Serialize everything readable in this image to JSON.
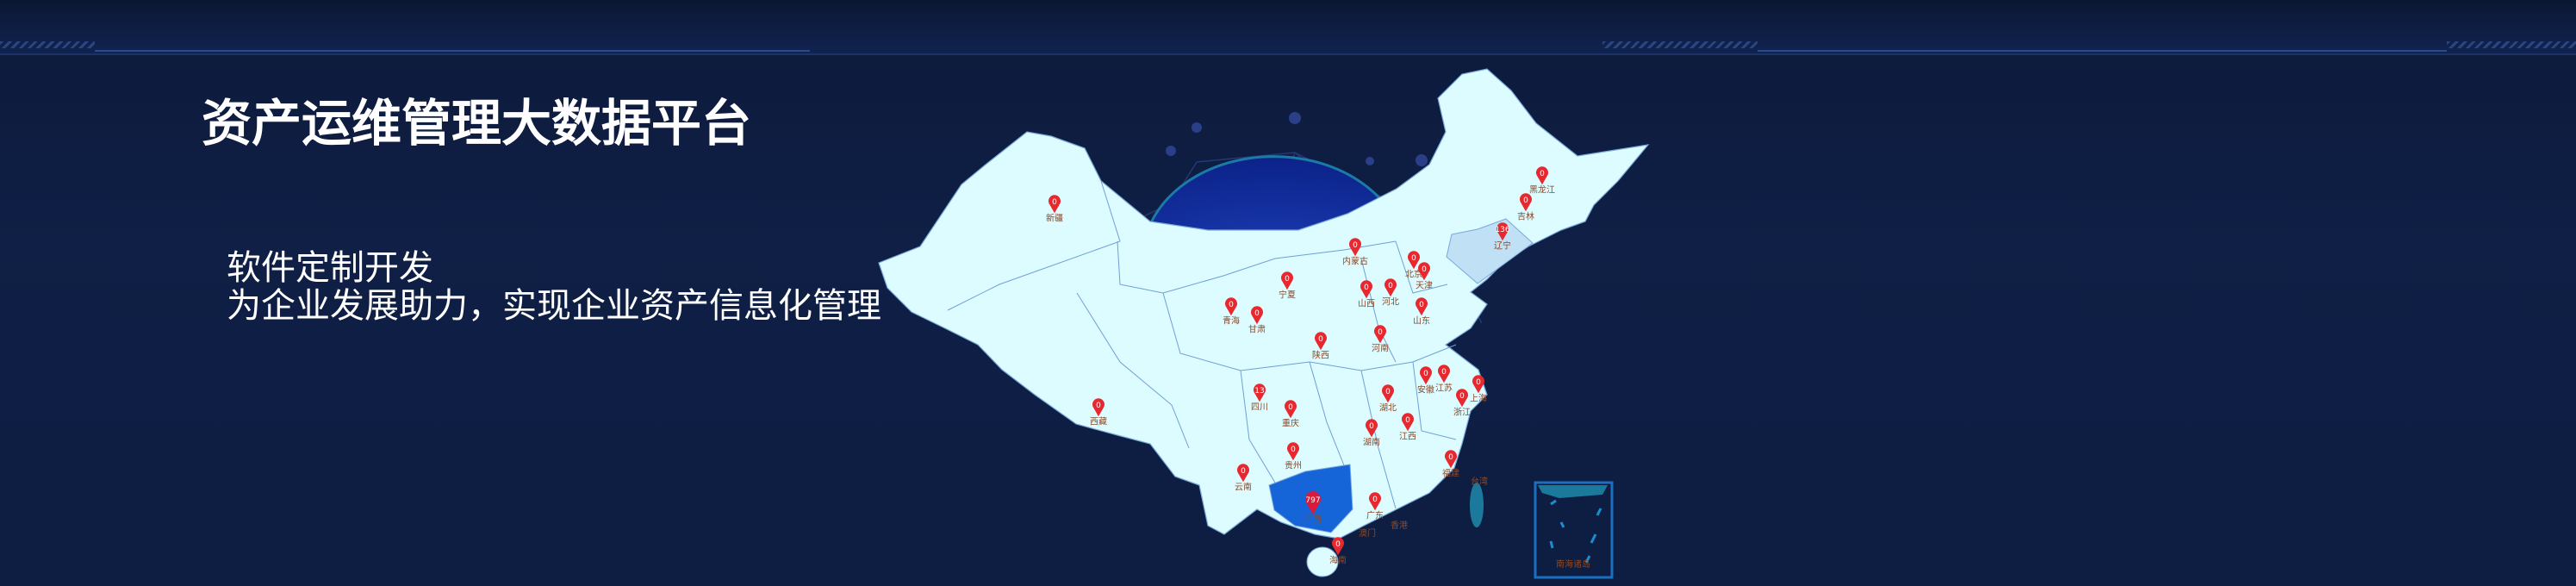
{
  "header": {
    "title": "资产运维管理大数据平台",
    "subtitle_line1": "软件定制开发",
    "subtitle_line2": "为企业发展助力，实现企业资产信息化管理"
  },
  "map": {
    "colors": {
      "land": "#dcfcff",
      "highlight_high": "#1565d8",
      "highlight_mid": "#bfe0f5",
      "pin": "#e8282f",
      "label": "#8b4a2a",
      "taiwan": "#1b7a9c"
    },
    "provinces": [
      {
        "name": "新疆",
        "value": 0
      },
      {
        "name": "黑龙江",
        "value": 0
      },
      {
        "name": "吉林",
        "value": 0
      },
      {
        "name": "辽宁",
        "value": 136
      },
      {
        "name": "内蒙古",
        "value": 0
      },
      {
        "name": "北京",
        "value": 0
      },
      {
        "name": "天津",
        "value": 0
      },
      {
        "name": "宁夏",
        "value": 0
      },
      {
        "name": "山西",
        "value": 0
      },
      {
        "name": "河北",
        "value": 0
      },
      {
        "name": "山东",
        "value": 0
      },
      {
        "name": "青海",
        "value": 0
      },
      {
        "name": "甘肃",
        "value": 0
      },
      {
        "name": "陕西",
        "value": 0
      },
      {
        "name": "河南",
        "value": 0
      },
      {
        "name": "安徽",
        "value": 0
      },
      {
        "name": "江苏",
        "value": 0
      },
      {
        "name": "上海",
        "value": 0
      },
      {
        "name": "四川",
        "value": 13
      },
      {
        "name": "湖北",
        "value": 0
      },
      {
        "name": "浙江",
        "value": 0
      },
      {
        "name": "重庆",
        "value": 0
      },
      {
        "name": "西藏",
        "value": 0
      },
      {
        "name": "湖南",
        "value": 0
      },
      {
        "name": "江西",
        "value": 0
      },
      {
        "name": "贵州",
        "value": 0
      },
      {
        "name": "福建",
        "value": 0
      },
      {
        "name": "云南",
        "value": 0
      },
      {
        "name": "广西",
        "value": 797
      },
      {
        "name": "广东",
        "value": 0
      },
      {
        "name": "海南",
        "value": 0
      }
    ],
    "other_labels": {
      "taiwan": "台湾",
      "hongkong": "香港",
      "macau": "澳门",
      "south_sea": "南海诸岛"
    }
  }
}
